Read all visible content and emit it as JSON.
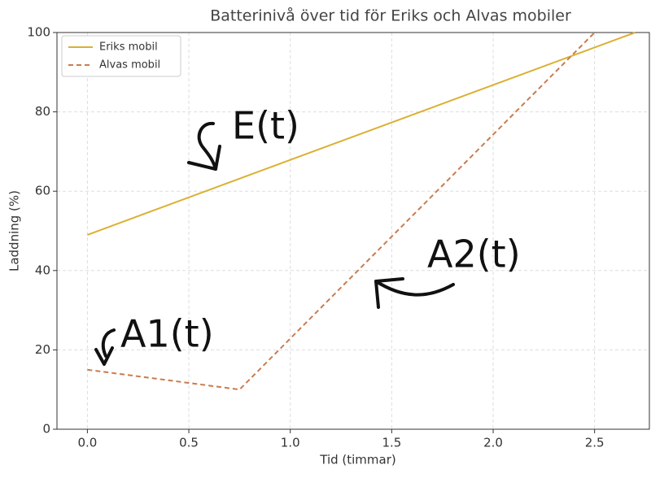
{
  "chart_data": {
    "type": "line",
    "title": "Batterinivå över tid för Eriks och Alvas mobiler",
    "xlabel": "Tid (timmar)",
    "ylabel": "Laddning (%)",
    "series": [
      {
        "name": "Eriks mobil",
        "color": "#dbb033",
        "linestyle": "solid",
        "x": [
          0,
          2.7
        ],
        "values": [
          49,
          100
        ]
      },
      {
        "name": "Alvas mobil",
        "color": "#c97c4e",
        "linestyle": "dashed",
        "x": [
          0,
          0.75,
          2.5
        ],
        "values": [
          15,
          10,
          100
        ]
      }
    ],
    "xlim": [
      -0.15,
      2.77
    ],
    "ylim": [
      0,
      100
    ],
    "xticks": [
      {
        "value": 0,
        "label": "0.0"
      },
      0.5,
      {
        "value": 1,
        "label": "1.0"
      },
      1.5,
      {
        "value": 2,
        "label": "2.0"
      },
      2.5
    ],
    "yticks": [
      0,
      20,
      40,
      60,
      80,
      100
    ],
    "grid": true,
    "legend": "upper left",
    "annotations": [
      "E(t)",
      "A2(t)",
      "A1(t)"
    ]
  }
}
